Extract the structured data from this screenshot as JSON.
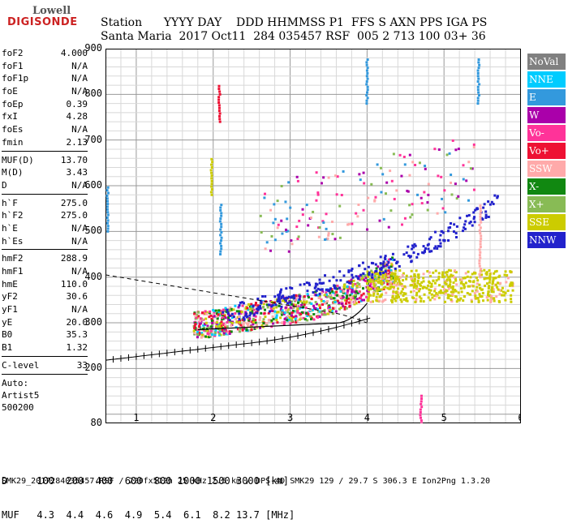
{
  "logo": {
    "line1": "Lowell",
    "line2": "DIGISONDE"
  },
  "header": {
    "labels": "Station      YYYY DAY    DDD HHMMSS P1  FFS S AXN PPS IGA PS",
    "values": "Santa Maria  2017 Oct11  284 035457 RSF  005 2 713 100 03+ 36"
  },
  "params": {
    "group1": [
      {
        "name": "foF2",
        "value": "4.000"
      },
      {
        "name": "foF1",
        "value": "N/A"
      },
      {
        "name": "foF1p",
        "value": "N/A"
      },
      {
        "name": "foE",
        "value": "N/A"
      },
      {
        "name": "foEp",
        "value": "0.39"
      },
      {
        "name": "fxI",
        "value": "4.28"
      },
      {
        "name": "foEs",
        "value": "N/A"
      },
      {
        "name": "fmin",
        "value": "2.13"
      }
    ],
    "group2": [
      {
        "name": "MUF(D)",
        "value": "13.70"
      },
      {
        "name": "M(D)",
        "value": "3.43"
      },
      {
        "name": "D",
        "value": "N/A"
      }
    ],
    "group3": [
      {
        "name": "h`F",
        "value": "275.0"
      },
      {
        "name": "h`F2",
        "value": "275.0"
      },
      {
        "name": "h`E",
        "value": "N/A"
      },
      {
        "name": "h`Es",
        "value": "N/A"
      }
    ],
    "group4": [
      {
        "name": "hmF2",
        "value": "288.9"
      },
      {
        "name": "hmF1",
        "value": "N/A"
      },
      {
        "name": "hmE",
        "value": "110.0"
      },
      {
        "name": "yF2",
        "value": "30.6"
      },
      {
        "name": "yF1",
        "value": "N/A"
      },
      {
        "name": "yE",
        "value": "20.0"
      },
      {
        "name": "B0",
        "value": "35.3"
      },
      {
        "name": "B1",
        "value": "1.32"
      }
    ],
    "group5": [
      {
        "name": "C-level",
        "value": "33"
      }
    ],
    "auto": [
      "Auto:",
      "Artist5",
      "500200"
    ]
  },
  "legend": [
    {
      "label": "NoVal",
      "color": "#808080"
    },
    {
      "label": "NNE",
      "color": "#00ccff"
    },
    {
      "label": "E",
      "color": "#3399dd"
    },
    {
      "label": "W",
      "color": "#aa00aa"
    },
    {
      "label": "Vo-",
      "color": "#ff3399"
    },
    {
      "label": "Vo+",
      "color": "#ee1133"
    },
    {
      "label": "SSW",
      "color": "#ffaaaa"
    },
    {
      "label": "X-",
      "color": "#118811"
    },
    {
      "label": "X+",
      "color": "#88bb55"
    },
    {
      "label": "SSE",
      "color": "#cccc00"
    },
    {
      "label": "NNW",
      "color": "#2222cc"
    }
  ],
  "chart_data": {
    "type": "scatter",
    "xlim": [
      0.6,
      6.0
    ],
    "ylim": [
      80,
      900
    ],
    "x_ticks": [
      "1",
      "2",
      "3",
      "4",
      "5",
      "6"
    ],
    "y_ticks": [
      "900",
      "800",
      "700",
      "600",
      "500",
      "400",
      "300",
      "200",
      "80"
    ],
    "grid": true,
    "legend_position": "right"
  },
  "footer": {
    "line1": "D     100  200  400  600  800 1000 1500 3000 [km]",
    "line2": "MUF   4.3  4.4  4.6  4.9  5.4  6.1  8.2 13.7 [MHz]",
    "line3": "SMK29_2017284035457.RSF / 220fx512h 25 kHz 2.5 km / DPS-4D SMK29 129 / 29.7 S 306.3 E Ion2Png 1.3.20"
  }
}
